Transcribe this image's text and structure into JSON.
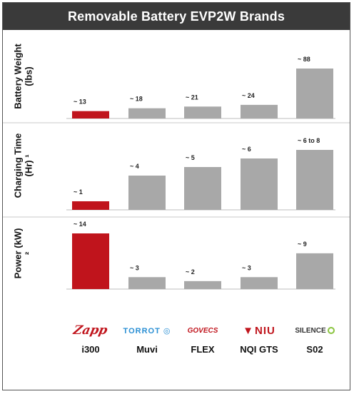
{
  "title": "Removable Battery EVP2W Brands",
  "colors": {
    "highlight": "#c0141c",
    "bar": "#a8a8a8",
    "divider": "#c8c8c8",
    "title_bg": "#3a3a3a"
  },
  "chart_data": [
    {
      "type": "bar",
      "ylabel": "Battery Weight (lbs)",
      "categories": [
        "i300",
        "Muvi",
        "FLEX",
        "NQI GTS",
        "S02"
      ],
      "values": [
        13,
        18,
        21,
        24,
        88
      ],
      "labels": [
        "~ 13",
        "~ 18",
        "~ 21",
        "~ 24",
        "~ 88"
      ],
      "highlight_index": 0
    },
    {
      "type": "bar",
      "ylabel": "Charging Time (Hr) ¹",
      "categories": [
        "i300",
        "Muvi",
        "FLEX",
        "NQI GTS",
        "S02"
      ],
      "values": [
        1,
        4,
        5,
        6,
        7
      ],
      "labels": [
        "~ 1",
        "~ 4",
        "~ 5",
        "~ 6",
        "~ 6 to 8"
      ],
      "highlight_index": 0
    },
    {
      "type": "bar",
      "ylabel": "Power (kW) ²",
      "categories": [
        "i300",
        "Muvi",
        "FLEX",
        "NQI GTS",
        "S02"
      ],
      "values": [
        14,
        3,
        2,
        3,
        9
      ],
      "labels": [
        "~ 14",
        "~ 3",
        "~ 2",
        "~ 3",
        "~ 9"
      ],
      "highlight_index": 0
    }
  ],
  "brands": [
    {
      "logo": "Zapp",
      "model": "i300",
      "logo_style": "zapp"
    },
    {
      "logo": "TORROT",
      "model": "Muvi",
      "logo_style": "torrot"
    },
    {
      "logo": "GOVECS",
      "model": "FLEX",
      "logo_style": "govecs"
    },
    {
      "logo": "NIU",
      "model": "NQI GTS",
      "logo_style": "niu"
    },
    {
      "logo": "SILENCE",
      "model": "S02",
      "logo_style": "silence"
    }
  ]
}
